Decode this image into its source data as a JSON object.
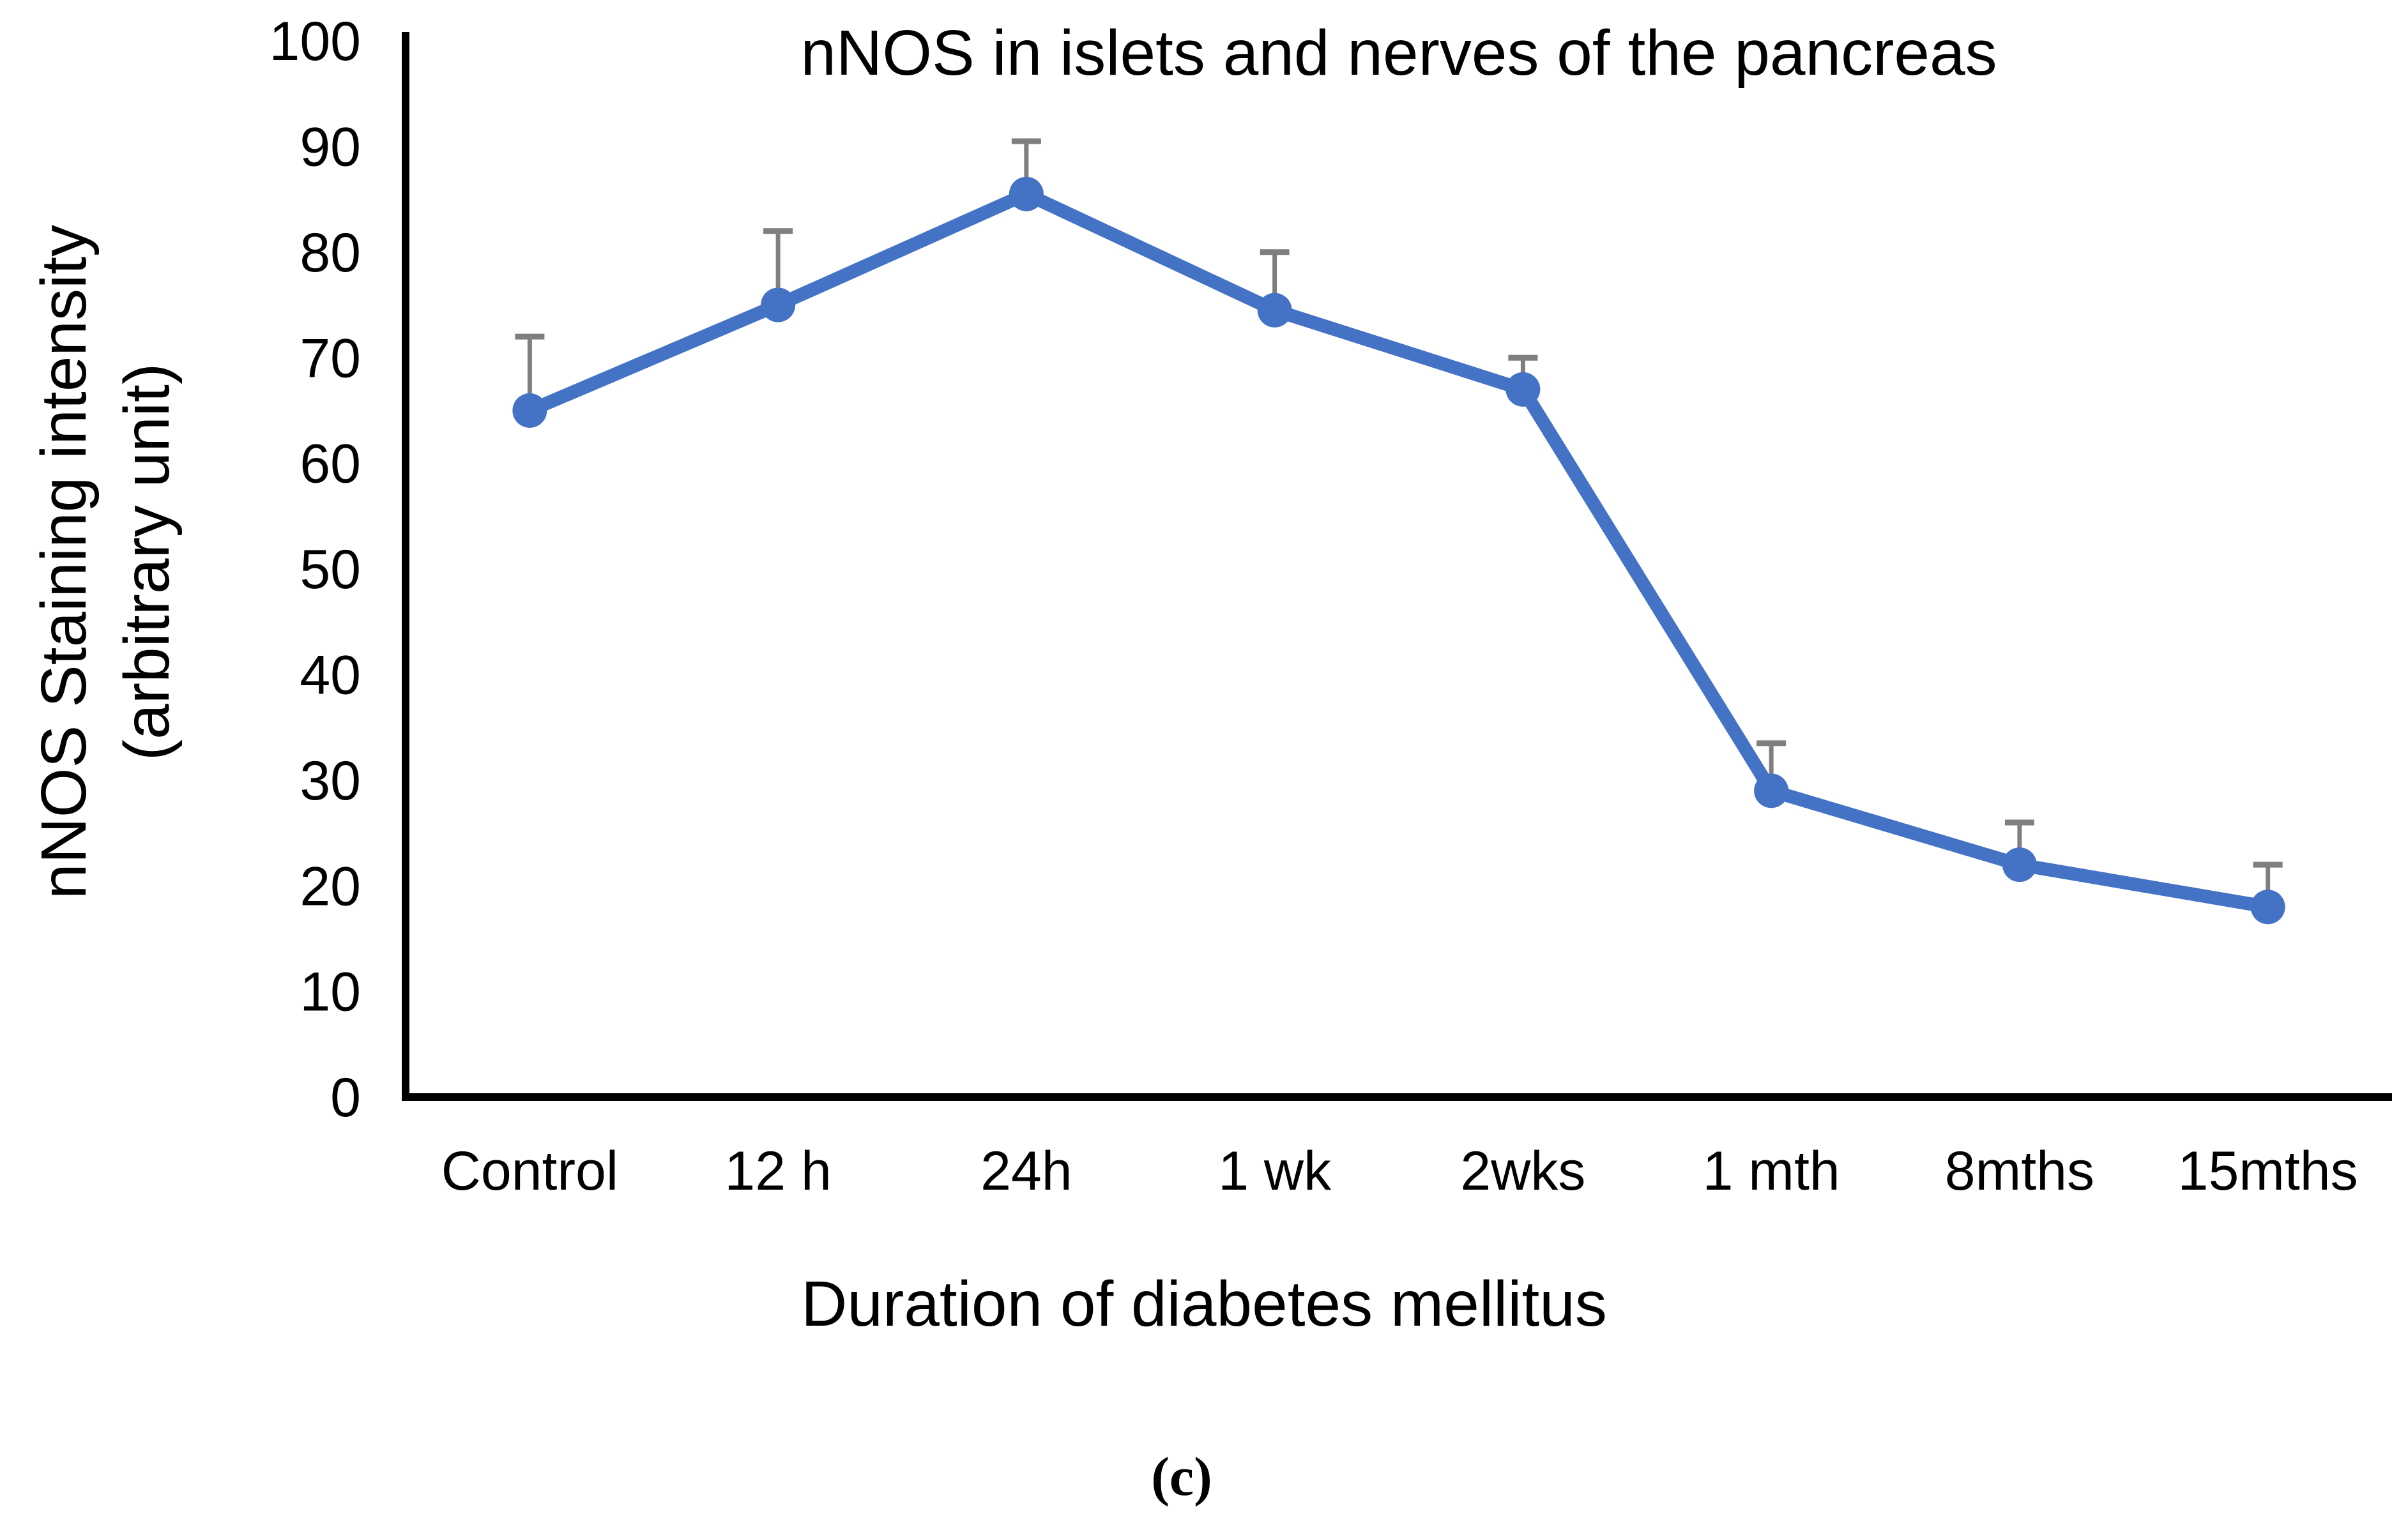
{
  "figure": {
    "caption": "(c)"
  },
  "chart_data": {
    "type": "line",
    "title": "nNOS in islets and nerves of the pancreas",
    "xlabel": "Duration of diabetes mellitus",
    "ylabel": "nNOS Staining intensity (arbitrary unit)",
    "ylabel_lines": [
      "nNOS Staining intensity",
      "(arbitrary unit)"
    ],
    "categories": [
      "Control",
      "12 h",
      "24h",
      "1 wk",
      "2wks",
      "1 mth",
      "8mths",
      "15mths"
    ],
    "series": [
      {
        "name": "nNOS staining intensity",
        "values": [
          65,
          75,
          85.5,
          74.5,
          67,
          29,
          22,
          18
        ],
        "errors_plus": [
          7,
          7,
          5,
          5.5,
          3,
          4.5,
          4,
          4
        ]
      }
    ],
    "ylim": [
      0,
      100
    ],
    "yticks": [
      0,
      10,
      20,
      30,
      40,
      50,
      60,
      70,
      80,
      90,
      100
    ],
    "grid": false,
    "legend_position": "none",
    "error_bar_direction": "plus-only",
    "colors": {
      "line": "#4472C4",
      "marker": "#4472C4",
      "error_bar": "#7F7F7F",
      "axis": "#000000",
      "text": "#000000"
    }
  }
}
